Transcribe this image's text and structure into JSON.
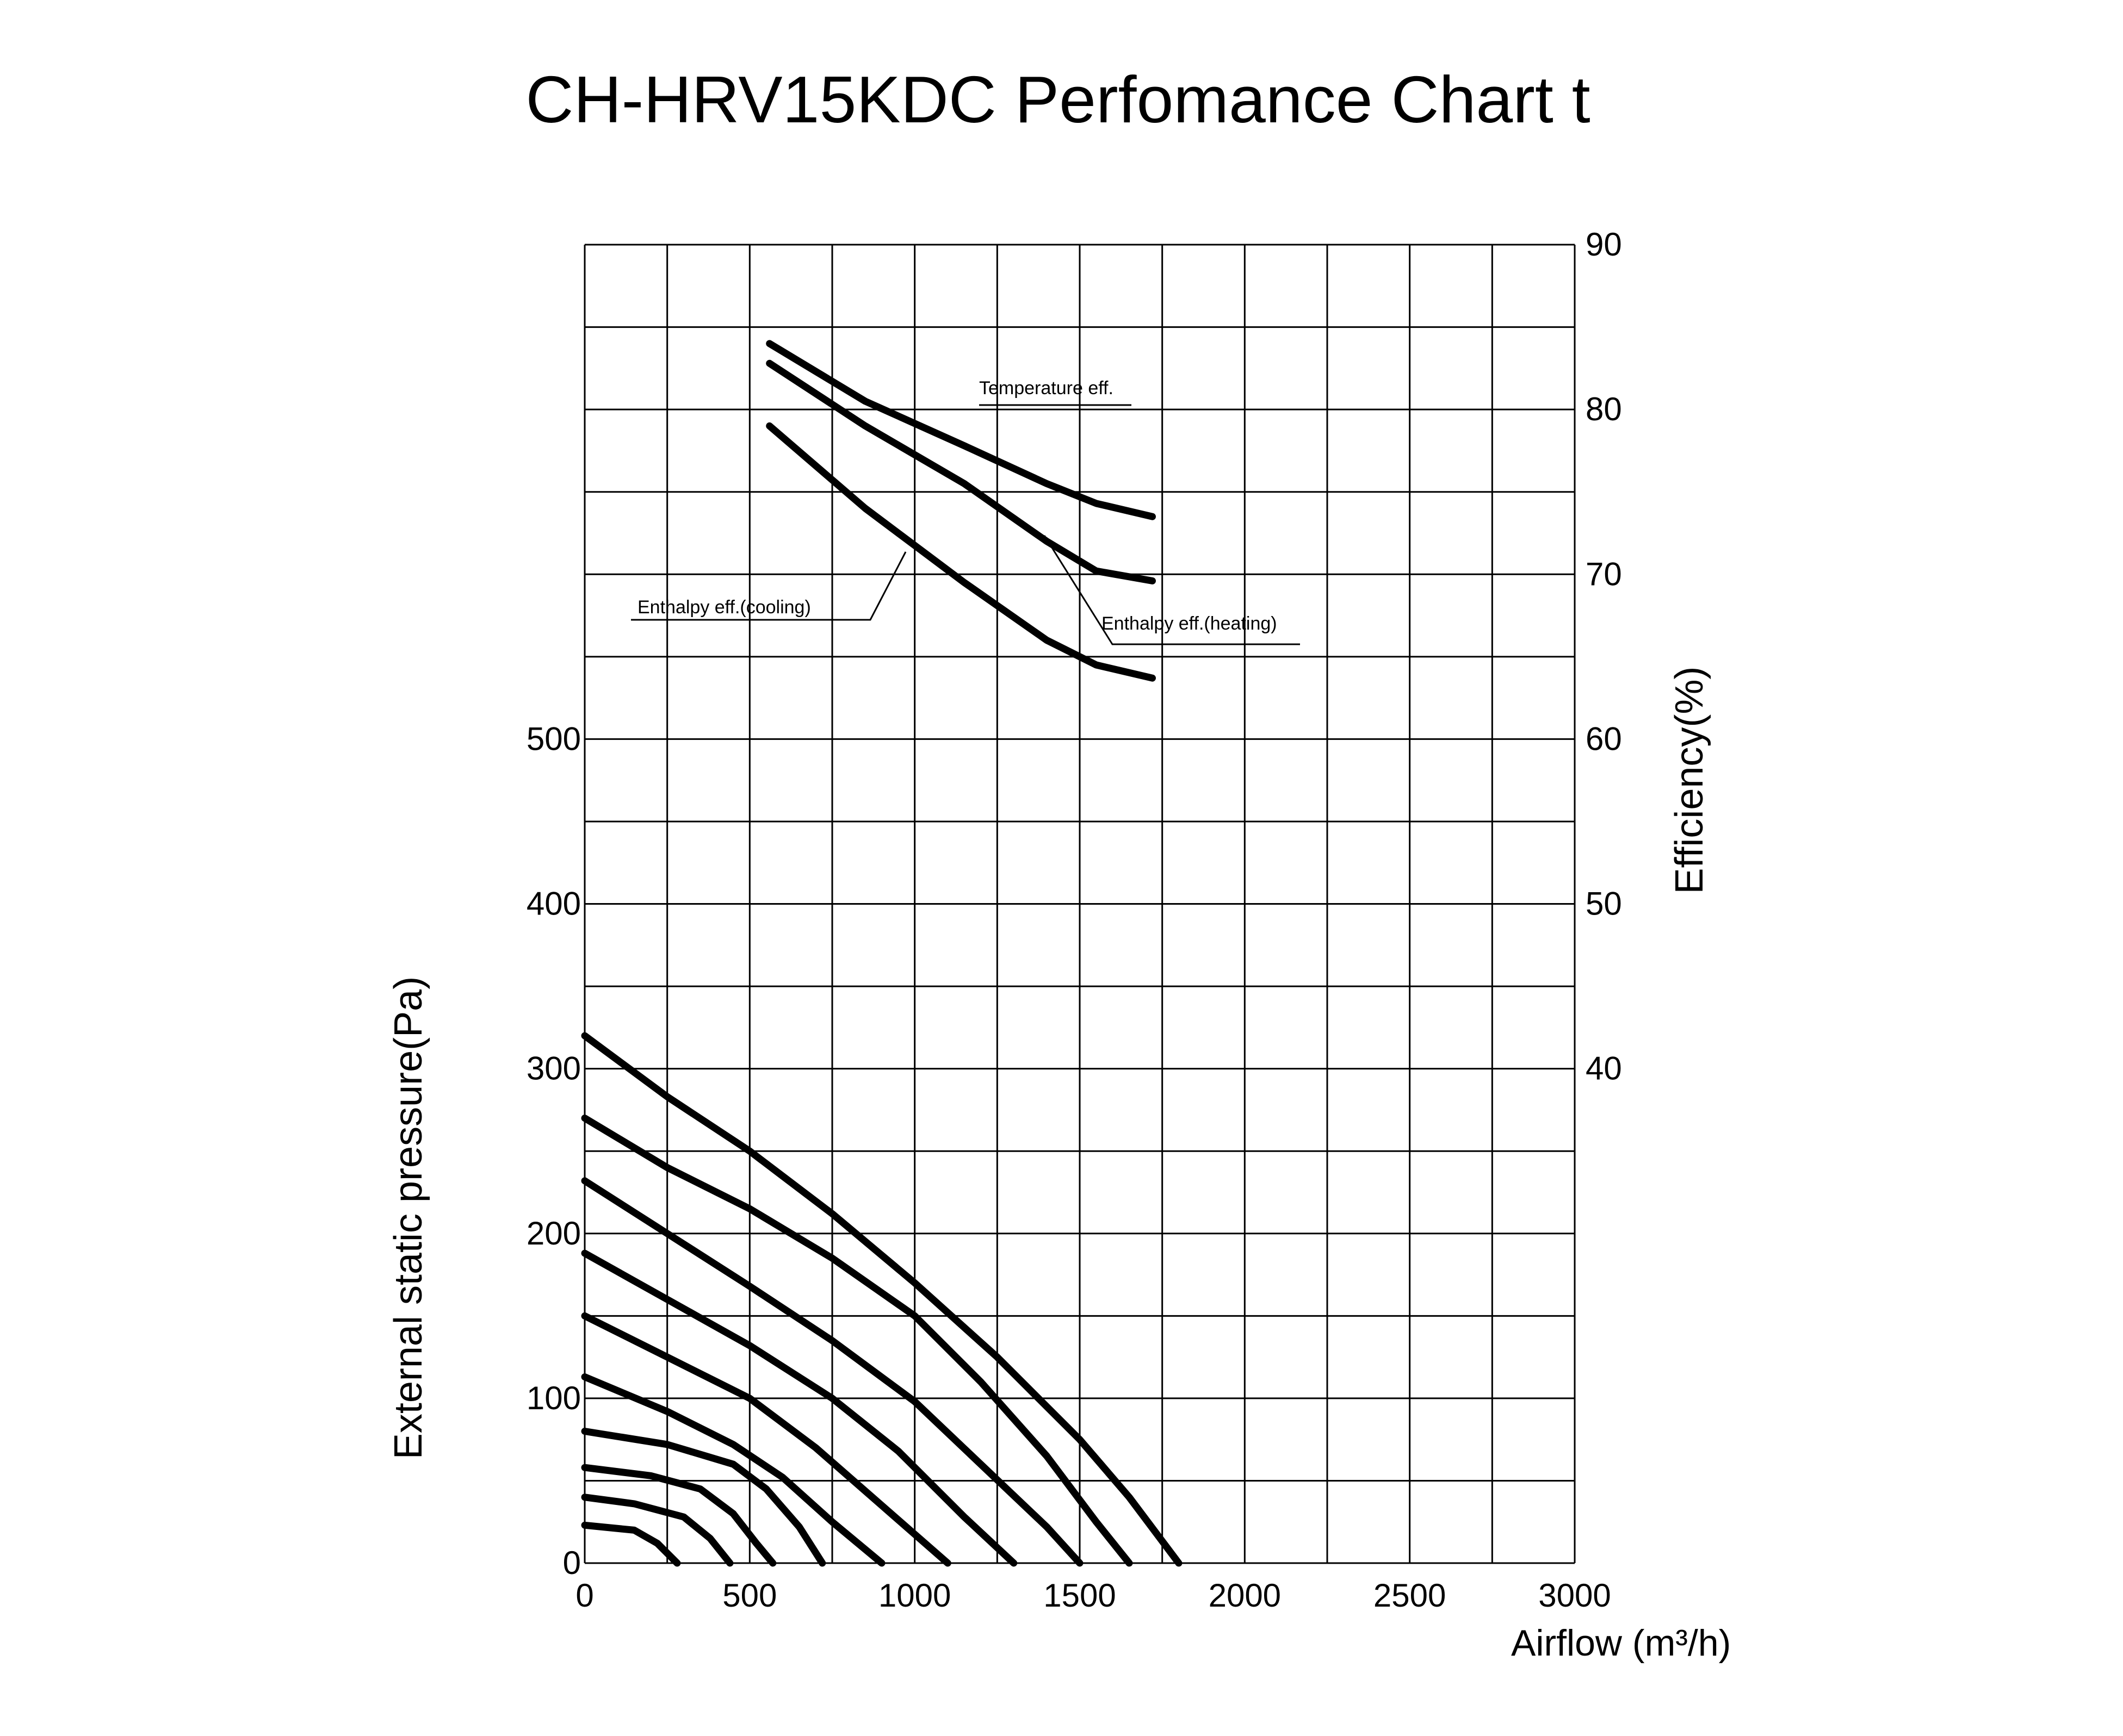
{
  "chart_data": {
    "type": "line",
    "title": "CH-HRV15KDC Perfomance Chart t",
    "xlabel": "Airflow (m³/h)",
    "ylabel_left": "External static pressure(Pa)",
    "ylabel_right": "Efficiency(%)",
    "xlim": [
      0,
      3000
    ],
    "ylim_left": [
      0,
      800
    ],
    "ylim_right": [
      10,
      90
    ],
    "grid": true,
    "x_ticks": [
      "0",
      "500",
      "1000",
      "1500",
      "2000",
      "2500",
      "3000"
    ],
    "y_left_ticks": [
      "0",
      "100",
      "200",
      "300",
      "400",
      "500"
    ],
    "y_right_ticks": [
      "40",
      "50",
      "60",
      "70",
      "80",
      "90"
    ],
    "pressure_curves": [
      {
        "points": [
          [
            0,
            320
          ],
          [
            250,
            283
          ],
          [
            500,
            250
          ],
          [
            750,
            212
          ],
          [
            1000,
            170
          ],
          [
            1250,
            125
          ],
          [
            1500,
            75
          ],
          [
            1650,
            40
          ],
          [
            1800,
            0
          ]
        ]
      },
      {
        "points": [
          [
            0,
            270
          ],
          [
            250,
            240
          ],
          [
            500,
            215
          ],
          [
            750,
            185
          ],
          [
            1000,
            150
          ],
          [
            1200,
            110
          ],
          [
            1400,
            65
          ],
          [
            1550,
            25
          ],
          [
            1650,
            0
          ]
        ]
      },
      {
        "points": [
          [
            0,
            232
          ],
          [
            250,
            200
          ],
          [
            500,
            168
          ],
          [
            750,
            135
          ],
          [
            1000,
            98
          ],
          [
            1200,
            60
          ],
          [
            1400,
            22
          ],
          [
            1500,
            0
          ]
        ]
      },
      {
        "points": [
          [
            0,
            188
          ],
          [
            250,
            160
          ],
          [
            500,
            132
          ],
          [
            750,
            100
          ],
          [
            950,
            68
          ],
          [
            1150,
            28
          ],
          [
            1300,
            0
          ]
        ]
      },
      {
        "points": [
          [
            0,
            150
          ],
          [
            250,
            125
          ],
          [
            500,
            100
          ],
          [
            700,
            70
          ],
          [
            900,
            35
          ],
          [
            1100,
            0
          ]
        ]
      },
      {
        "points": [
          [
            0,
            113
          ],
          [
            250,
            92
          ],
          [
            450,
            72
          ],
          [
            600,
            52
          ],
          [
            750,
            25
          ],
          [
            900,
            0
          ]
        ]
      },
      {
        "points": [
          [
            0,
            80
          ],
          [
            250,
            72
          ],
          [
            450,
            60
          ],
          [
            550,
            45
          ],
          [
            650,
            22
          ],
          [
            720,
            0
          ]
        ]
      },
      {
        "points": [
          [
            0,
            58
          ],
          [
            200,
            53
          ],
          [
            350,
            45
          ],
          [
            450,
            30
          ],
          [
            520,
            12
          ],
          [
            570,
            0
          ]
        ]
      },
      {
        "points": [
          [
            0,
            40
          ],
          [
            150,
            36
          ],
          [
            300,
            28
          ],
          [
            380,
            15
          ],
          [
            440,
            0
          ]
        ]
      },
      {
        "points": [
          [
            0,
            23
          ],
          [
            150,
            20
          ],
          [
            220,
            12
          ],
          [
            280,
            0
          ]
        ]
      }
    ],
    "efficiency_series": [
      {
        "name": "Temperature eff.",
        "points": [
          [
            560,
            84
          ],
          [
            850,
            80.5
          ],
          [
            1150,
            77.8
          ],
          [
            1400,
            75.5
          ],
          [
            1550,
            74.3
          ],
          [
            1720,
            73.5
          ]
        ]
      },
      {
        "name": "Enthalpy eff.(heating)",
        "points": [
          [
            560,
            82.8
          ],
          [
            850,
            79
          ],
          [
            1150,
            75.5
          ],
          [
            1400,
            72
          ],
          [
            1550,
            70.2
          ],
          [
            1720,
            69.6
          ]
        ]
      },
      {
        "name": "Enthalpy eff.(cooling)",
        "points": [
          [
            560,
            79
          ],
          [
            850,
            74
          ],
          [
            1150,
            69.5
          ],
          [
            1400,
            66
          ],
          [
            1550,
            64.5
          ],
          [
            1720,
            63.7
          ]
        ]
      }
    ]
  }
}
